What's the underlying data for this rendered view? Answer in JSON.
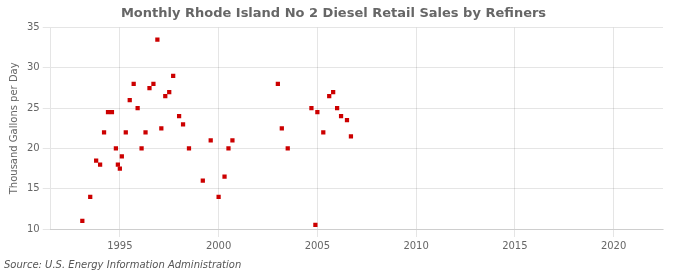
{
  "chart_data": {
    "type": "scatter",
    "title": "Monthly Rhode Island No 2 Diesel Retail Sales by Refiners",
    "ylabel": "Thousand Gallons per Day",
    "annotation": "Source: U.S. Energy Information Administration",
    "color": "#cc0000",
    "marker": "square",
    "grid": true,
    "xlim": [
      1991.5,
      2022.5
    ],
    "ylim": [
      10,
      35
    ],
    "xticks": [
      1995,
      2000,
      2005,
      2010,
      2015,
      2020
    ],
    "yticks": [
      10,
      15,
      20,
      25,
      30,
      35
    ],
    "x": [
      1993.1,
      1993.5,
      1993.8,
      1994.0,
      1994.2,
      1994.4,
      1994.6,
      1994.8,
      1994.9,
      1995.0,
      1995.1,
      1995.3,
      1995.5,
      1995.7,
      1995.9,
      1996.1,
      1996.3,
      1996.5,
      1996.7,
      1996.9,
      1997.1,
      1997.3,
      1997.5,
      1997.7,
      1998.0,
      1998.2,
      1998.5,
      1999.2,
      1999.6,
      2000.0,
      2000.3,
      2000.5,
      2000.7,
      2003.0,
      2003.2,
      2003.5,
      2004.7,
      2004.9,
      2005.0,
      2005.3,
      2005.6,
      2005.8,
      2006.0,
      2006.2,
      2006.5,
      2006.7
    ],
    "values": [
      11.0,
      14.0,
      18.5,
      18.0,
      22.0,
      24.5,
      24.5,
      20.0,
      18.0,
      17.5,
      19.0,
      22.0,
      26.0,
      28.0,
      25.0,
      20.0,
      22.0,
      27.5,
      28.0,
      33.5,
      22.5,
      26.5,
      27.0,
      29.0,
      24.0,
      23.0,
      20.0,
      16.0,
      21.0,
      14.0,
      16.5,
      20.0,
      21.0,
      28.0,
      22.5,
      20.0,
      25.0,
      10.5,
      24.5,
      22.0,
      26.5,
      27.0,
      25.0,
      24.0,
      23.5,
      21.5
    ]
  }
}
